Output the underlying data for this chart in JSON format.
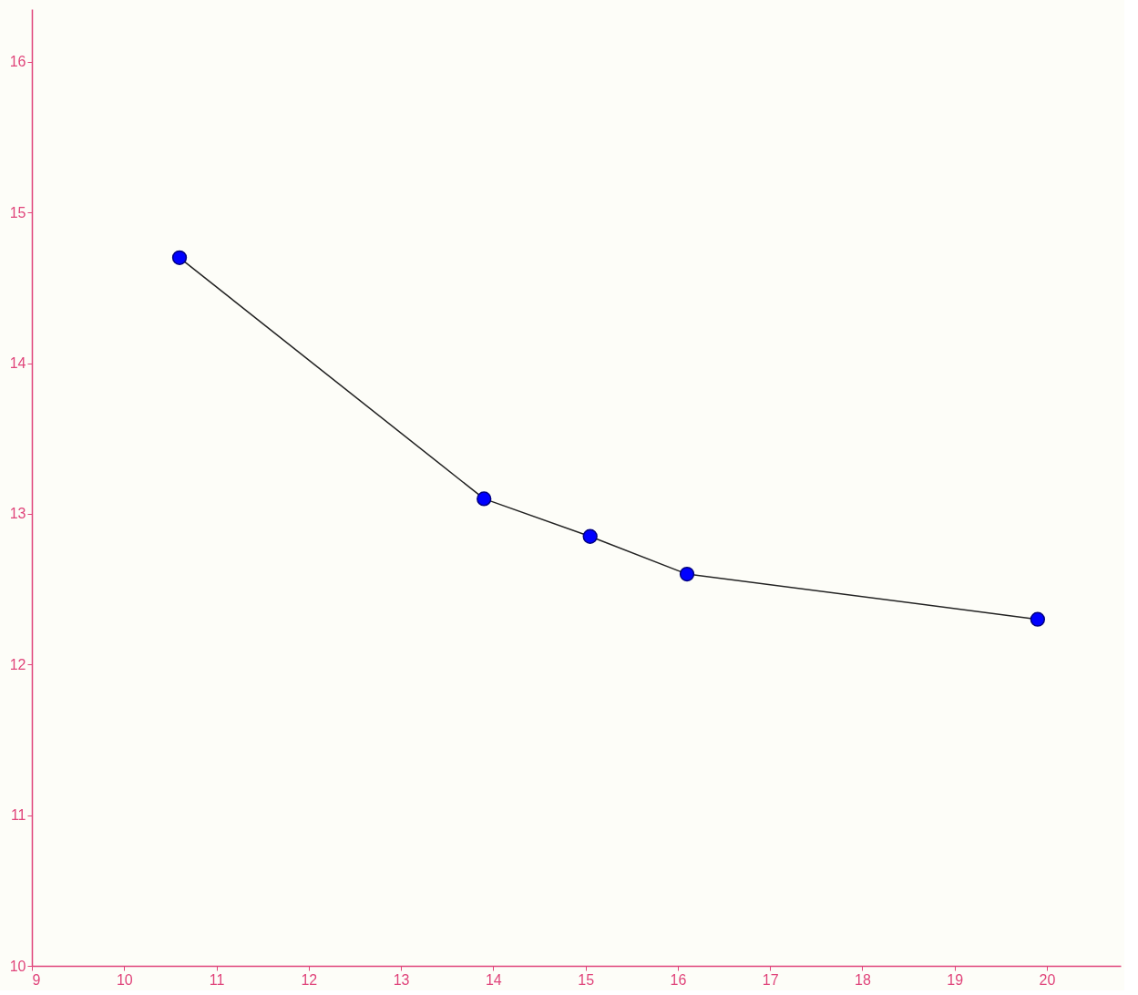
{
  "chart_data": {
    "type": "line",
    "x": [
      10.6,
      13.9,
      15.05,
      16.1,
      19.9
    ],
    "series": [
      {
        "color": "#000080",
        "values": [
          14.7,
          13.1,
          12.85,
          12.6,
          12.3
        ]
      }
    ],
    "marker": "circle",
    "line_style": "solid",
    "xlim": [
      9,
      20.8
    ],
    "ylim": [
      10,
      16.35
    ],
    "xticks": [
      9,
      10,
      11,
      12,
      13,
      14,
      15,
      16,
      17,
      18,
      19,
      20
    ],
    "yticks": [
      10,
      11,
      12,
      13,
      14,
      15,
      16
    ],
    "grid": false,
    "legend": false
  }
}
